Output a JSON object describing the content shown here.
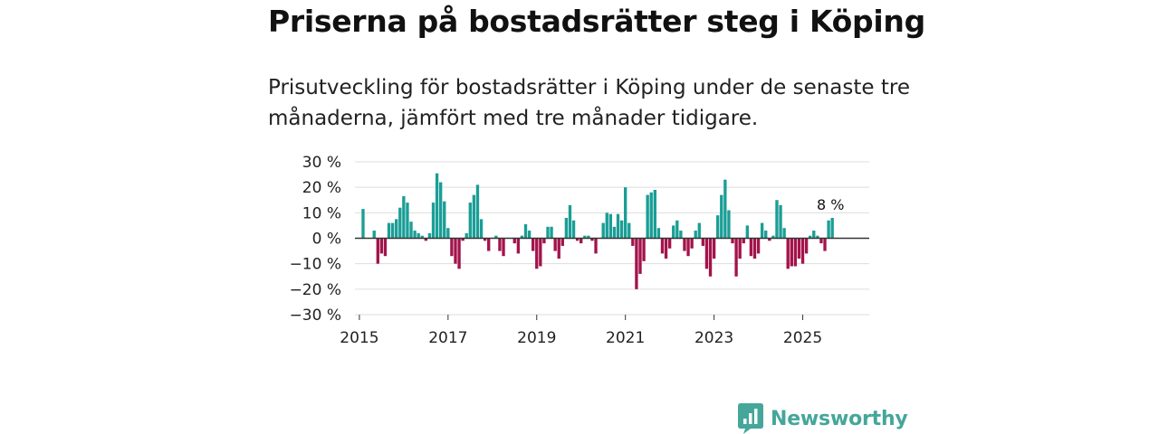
{
  "title": "Priserna på bostadsrätter steg i Köping",
  "subtitle": "Prisutveckling för bostadsrätter i Köping under de senaste tre månaderna, jämfört med tre månader tidigare.",
  "brand": {
    "name": "Newsworthy",
    "icon": "newsworthy-logo-icon"
  },
  "colors": {
    "positive": "#1a9e96",
    "negative": "#a3134b",
    "grid": "#dddddd",
    "zero": "#333333",
    "brand": "#45a69a"
  },
  "chart_data": {
    "type": "bar",
    "title": "Priserna på bostadsrätter steg i Köping",
    "xlabel": "",
    "ylabel": "",
    "x_range": [
      2014.9,
      2026.5
    ],
    "ylim": [
      -30,
      30
    ],
    "y_ticks": [
      30,
      20,
      10,
      0,
      -10,
      -20,
      -30
    ],
    "y_tick_labels": [
      "30 %",
      "20 %",
      "10 %",
      "0 %",
      "−10 %",
      "−20 %",
      "−30 %"
    ],
    "x_ticks": [
      2015,
      2017,
      2019,
      2021,
      2023,
      2025
    ],
    "x_tick_labels": [
      "2015",
      "2017",
      "2019",
      "2021",
      "2023",
      "2025"
    ],
    "start": 2015.0,
    "step": 0.08333,
    "unit": "%",
    "last_value_label": "8 %",
    "values": [
      null,
      11.5,
      null,
      null,
      3,
      -10,
      -6,
      -7,
      6,
      6,
      7.5,
      12,
      16.5,
      14,
      6.5,
      3,
      2,
      1,
      -1,
      2,
      14,
      25.5,
      22,
      14.5,
      4,
      -7,
      -10,
      -12,
      -1,
      2,
      14,
      17,
      21,
      7.5,
      -1,
      -5,
      null,
      1,
      -5,
      -7,
      null,
      null,
      -2,
      -6,
      1,
      5.5,
      3,
      -5,
      -12,
      -11,
      -2,
      4.5,
      4.5,
      -5,
      -8,
      -3,
      8,
      13,
      7,
      -1,
      -2,
      1,
      1,
      -1,
      -6,
      null,
      6,
      10,
      9.5,
      4.5,
      9.5,
      7,
      20,
      6,
      -3,
      -20,
      -14,
      -9,
      17,
      18,
      19,
      4,
      -6,
      -8,
      -4,
      5,
      7,
      3,
      -5,
      -7,
      -4,
      3,
      6,
      -3,
      -12,
      -15,
      -8,
      9,
      17,
      23,
      11,
      -2,
      -15,
      -8,
      -2,
      5,
      -7,
      -8,
      -6,
      6,
      3,
      -1,
      1,
      15,
      13,
      4,
      -12,
      -11,
      -11,
      -8,
      -10,
      -6,
      1,
      3,
      1,
      -2,
      -5,
      7,
      8
    ]
  }
}
